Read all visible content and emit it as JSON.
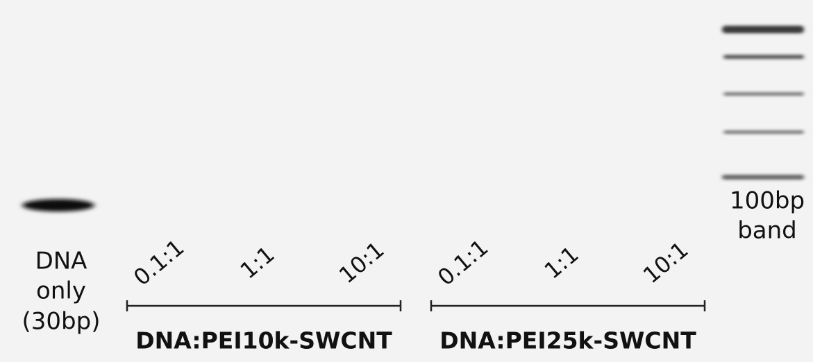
{
  "control_label": [
    "DNA",
    "only",
    "(30bp)"
  ],
  "ladder_label": [
    "100bp",
    "band"
  ],
  "groups": [
    {
      "title": "DNA:PEI10k-SWCNT",
      "ratios": [
        "0.1:1",
        "1:1",
        "10:1"
      ]
    },
    {
      "title": "DNA:PEI25k-SWCNT",
      "ratios": [
        "0.1:1",
        "1:1",
        "10:1"
      ]
    }
  ]
}
